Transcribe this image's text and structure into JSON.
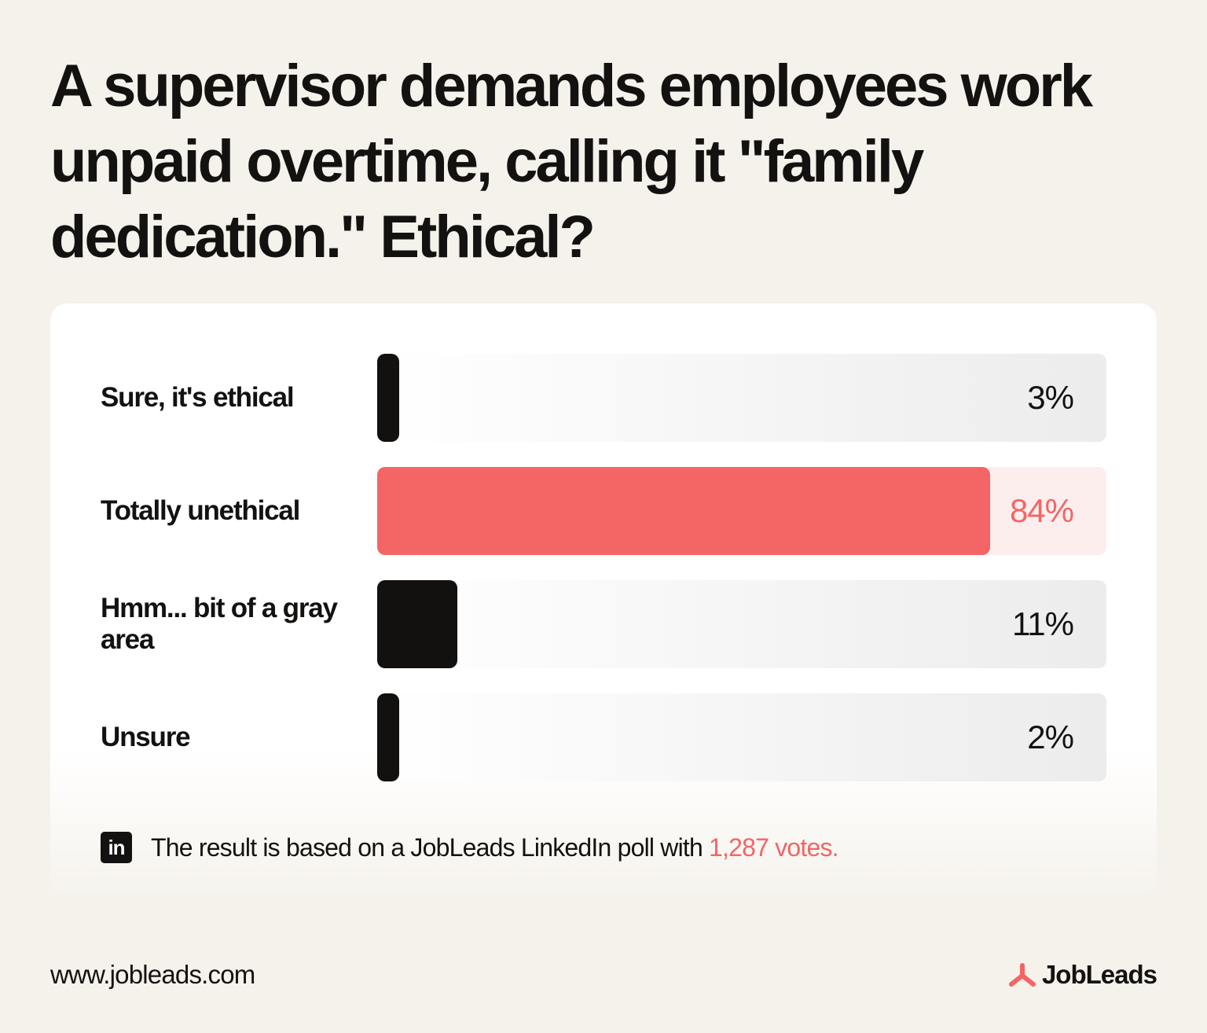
{
  "title": "A supervisor demands employees work unpaid overtime, calling it \"family dedication.\" Ethical?",
  "chart_data": {
    "type": "bar",
    "orientation": "horizontal",
    "categories": [
      "Sure, it's ethical",
      "Totally unethical",
      "Hmm... bit of a gray area",
      "Unsure"
    ],
    "values": [
      3,
      84,
      11,
      2
    ],
    "value_labels": [
      "3%",
      "84%",
      "11%",
      "2%"
    ],
    "highlight_index": 1,
    "unit": "%",
    "xlim": [
      0,
      100
    ],
    "grid": false
  },
  "source": {
    "icon": "linkedin-icon",
    "icon_text": "in",
    "text": "The result is based on a JobLeads LinkedIn poll with",
    "votes": "1,287 votes."
  },
  "footer": {
    "url": "www.jobleads.com",
    "brand": "JobLeads"
  },
  "colors": {
    "background": "#f5f2ec",
    "card": "#ffffff",
    "bar": "#121110",
    "highlight": "#f46565",
    "highlight_track": "#fdeeee"
  }
}
